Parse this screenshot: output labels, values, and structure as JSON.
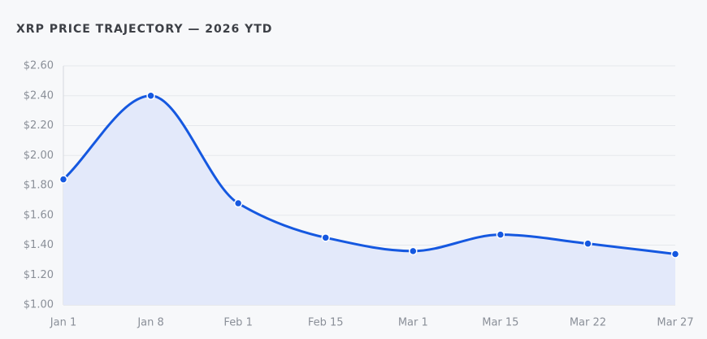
{
  "chart_data": {
    "type": "line",
    "title": "XRP PRICE TRAJECTORY — 2026 YTD",
    "categories": [
      "Jan 1",
      "Jan 8",
      "Feb 1",
      "Feb 15",
      "Mar 1",
      "Mar 15",
      "Mar 22",
      "Mar 27"
    ],
    "values": [
      1.84,
      2.4,
      1.68,
      1.45,
      1.36,
      1.47,
      1.41,
      1.34
    ],
    "color": "#1558e0",
    "area_color": "#e3e9fa",
    "ylim": [
      1.0,
      2.6
    ],
    "yticks": [
      {
        "value": 1.0,
        "label": "$1.00"
      },
      {
        "value": 1.2,
        "label": "$1.20"
      },
      {
        "value": 1.4,
        "label": "$1.40"
      },
      {
        "value": 1.6,
        "label": "$1.60"
      },
      {
        "value": 1.8,
        "label": "$1.80"
      },
      {
        "value": 2.0,
        "label": "$2.00"
      },
      {
        "value": 2.2,
        "label": "$2.20"
      },
      {
        "value": 2.4,
        "label": "$2.40"
      },
      {
        "value": 2.6,
        "label": "$2.60"
      }
    ],
    "grid": true
  }
}
